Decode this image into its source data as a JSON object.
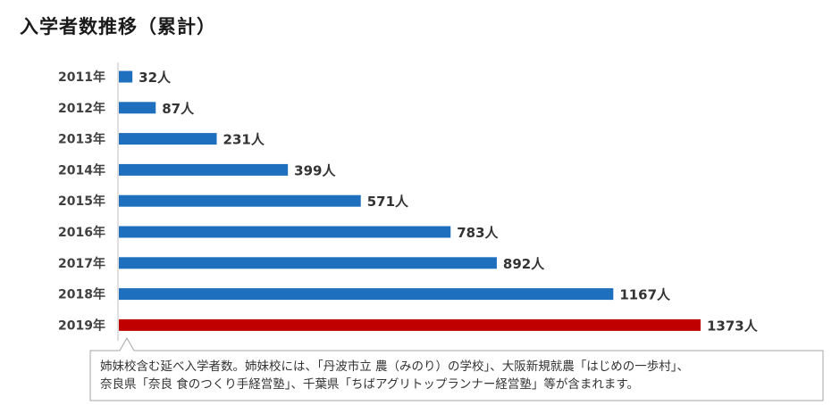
{
  "title": "入学者数推移（累計）",
  "chart_data": {
    "type": "bar",
    "orientation": "horizontal",
    "categories": [
      "2011年",
      "2012年",
      "2013年",
      "2014年",
      "2015年",
      "2016年",
      "2017年",
      "2018年",
      "2019年"
    ],
    "values": [
      32,
      87,
      231,
      399,
      571,
      783,
      892,
      1167,
      1373
    ],
    "unit": "人",
    "title": "入学者数推移（累計）",
    "xlabel": "",
    "ylabel": "",
    "xlim": [
      0,
      1373
    ],
    "grid": false,
    "colors": {
      "default": "#1f6fbf",
      "highlight": "#c00000"
    },
    "highlight_index": 8
  },
  "note": {
    "line1": "姉妹校含む延べ入学者数。姉妹校には、「丹波市立 農（みのり）の学校」、大阪新規就農「はじめの一歩村」、",
    "line2": "奈良県「奈良 食のつくり手経営塾」、千葉県「ちばアグリトップランナー経営塾」等が含まれます。"
  }
}
